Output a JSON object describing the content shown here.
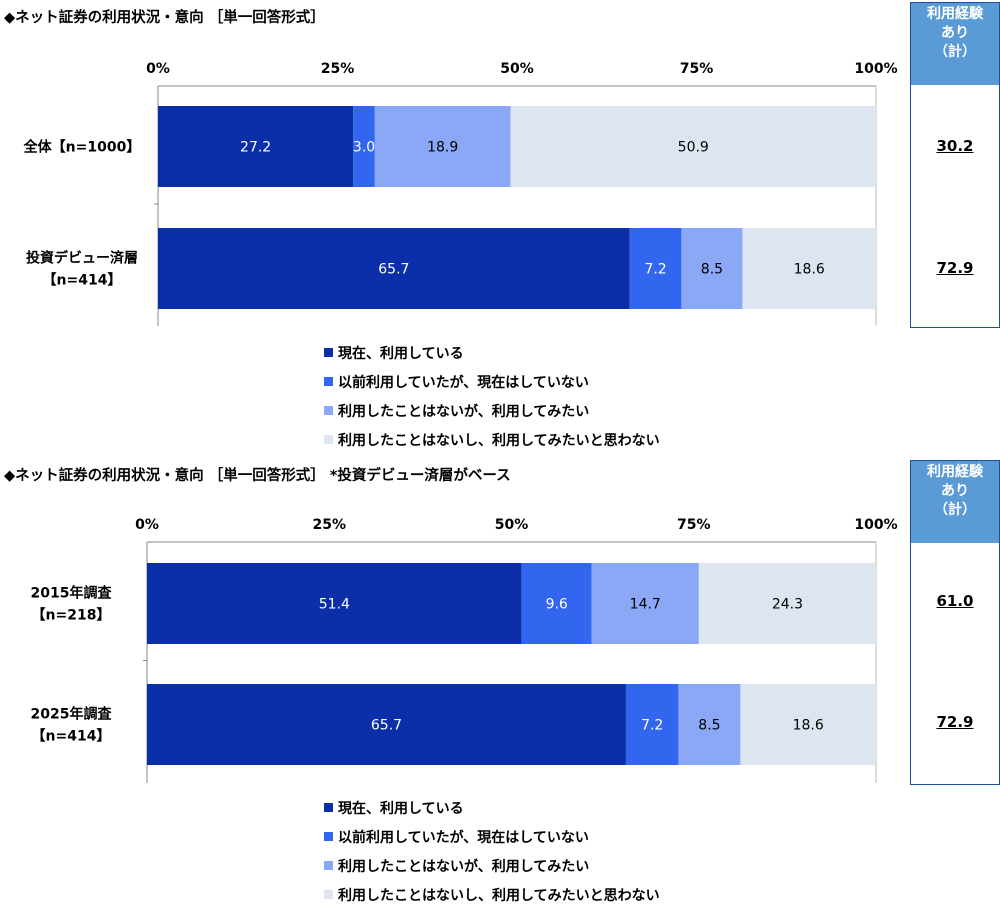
{
  "colors": {
    "s1": "#0a2fa8",
    "s2": "#3366ee",
    "s3": "#8aa8f5",
    "s4": "#dde5f1",
    "side_header": "#5b9bd5",
    "side_border": "#1f4e9c"
  },
  "chart_data": [
    {
      "type": "bar",
      "orientation": "horizontal-stacked",
      "title": "◆ネット証券の利用状況・意向 ［単一回答形式］",
      "categories": [
        "全体【n=1000】",
        "投資デビュー済層|【n=414】"
      ],
      "series": [
        {
          "name": "現在、利用している",
          "values": [
            27.2,
            65.7
          ]
        },
        {
          "name": "以前利用していたが、現在はしていない",
          "values": [
            3.0,
            7.2
          ]
        },
        {
          "name": "利用したことはないが、利用してみたい",
          "values": [
            18.9,
            8.5
          ]
        },
        {
          "name": "利用したことはないし、利用してみたいと思わない",
          "values": [
            50.9,
            18.6
          ]
        }
      ],
      "xticks": [
        "0%",
        "25%",
        "50%",
        "75%",
        "100%"
      ],
      "xlim": [
        0,
        100
      ],
      "side_header": "利用経験|あり|（計）",
      "side_values": [
        "30.2",
        "72.9"
      ],
      "legend_position": "bottom"
    },
    {
      "type": "bar",
      "orientation": "horizontal-stacked",
      "title": "◆ネット証券の利用状況・意向 ［単一回答形式］ *投資デビュー済層がベース",
      "categories": [
        "2015年調査|【n=218】",
        "2025年調査|【n=414】"
      ],
      "series": [
        {
          "name": "現在、利用している",
          "values": [
            51.4,
            65.7
          ]
        },
        {
          "name": "以前利用していたが、現在はしていない",
          "values": [
            9.6,
            7.2
          ]
        },
        {
          "name": "利用したことはないが、利用してみたい",
          "values": [
            14.7,
            8.5
          ]
        },
        {
          "name": "利用したことはないし、利用してみたいと思わない",
          "values": [
            24.3,
            18.6
          ]
        }
      ],
      "xticks": [
        "0%",
        "25%",
        "50%",
        "75%",
        "100%"
      ],
      "xlim": [
        0,
        100
      ],
      "side_header": "利用経験|あり|（計）",
      "side_values": [
        "61.0",
        "72.9"
      ],
      "legend_position": "bottom"
    }
  ]
}
